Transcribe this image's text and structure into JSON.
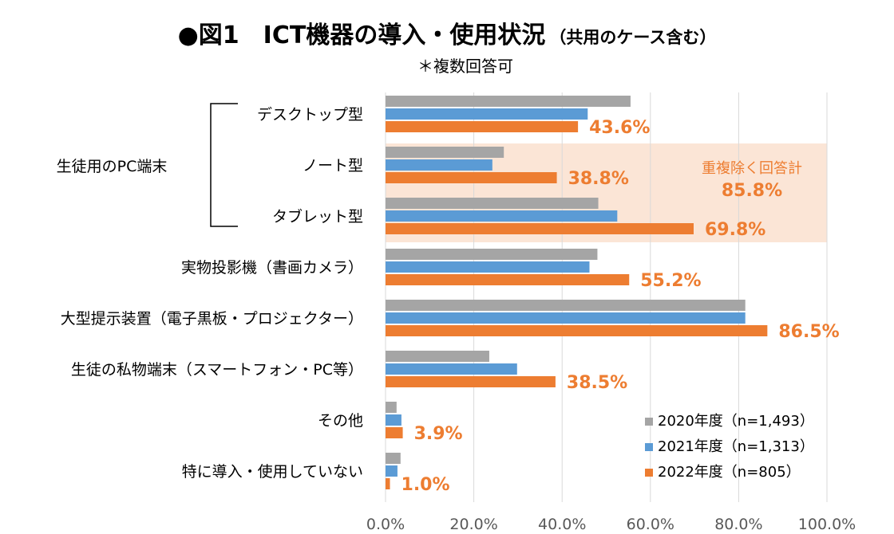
{
  "chart_data": {
    "type": "bar",
    "orientation": "horizontal",
    "title": "●図1　ICT機器の導入・使用状況",
    "title_suffix": "（共用のケース含む）",
    "subtitle": "＊複数回答可",
    "group_label": "生徒用のPC端末",
    "categories": [
      "デスクトップ型",
      "ノート型",
      "タブレット型",
      "実物投影機（書画カメラ）",
      "大型提示装置（電子黒板・プロジェクター）",
      "生徒の私物端末（スマートフォン・PC等）",
      "その他",
      "特に導入・使用していない"
    ],
    "series": [
      {
        "name": "2020年度（n=1,493）",
        "values": [
          55.5,
          26.8,
          48.2,
          48.0,
          81.5,
          23.5,
          2.5,
          3.4
        ]
      },
      {
        "name": "2021年度（n=1,313）",
        "values": [
          45.8,
          24.2,
          52.5,
          46.2,
          81.5,
          29.8,
          3.6,
          2.7
        ]
      },
      {
        "name": "2022年度（n=805）",
        "values": [
          43.6,
          38.8,
          69.8,
          55.2,
          86.5,
          38.5,
          3.9,
          1.0
        ]
      }
    ],
    "data_labels": [
      "43.6%",
      "38.8%",
      "69.8%",
      "55.2%",
      "86.5%",
      "38.5%",
      "3.9%",
      "1.0%"
    ],
    "x_ticks": [
      "0.0%",
      "20.0%",
      "40.0%",
      "60.0%",
      "80.0%",
      "100.0%"
    ],
    "xlim": [
      0,
      100
    ],
    "annotation": {
      "label": "重複除く回答計",
      "value": "85.8%"
    },
    "legend_position": "bottom-right",
    "colors": {
      "2020": "#A5A5A5",
      "2021": "#5B9BD5",
      "2022": "#ED7D31",
      "highlight": "#FBE5D6",
      "grid": "#D9D9D9"
    }
  }
}
